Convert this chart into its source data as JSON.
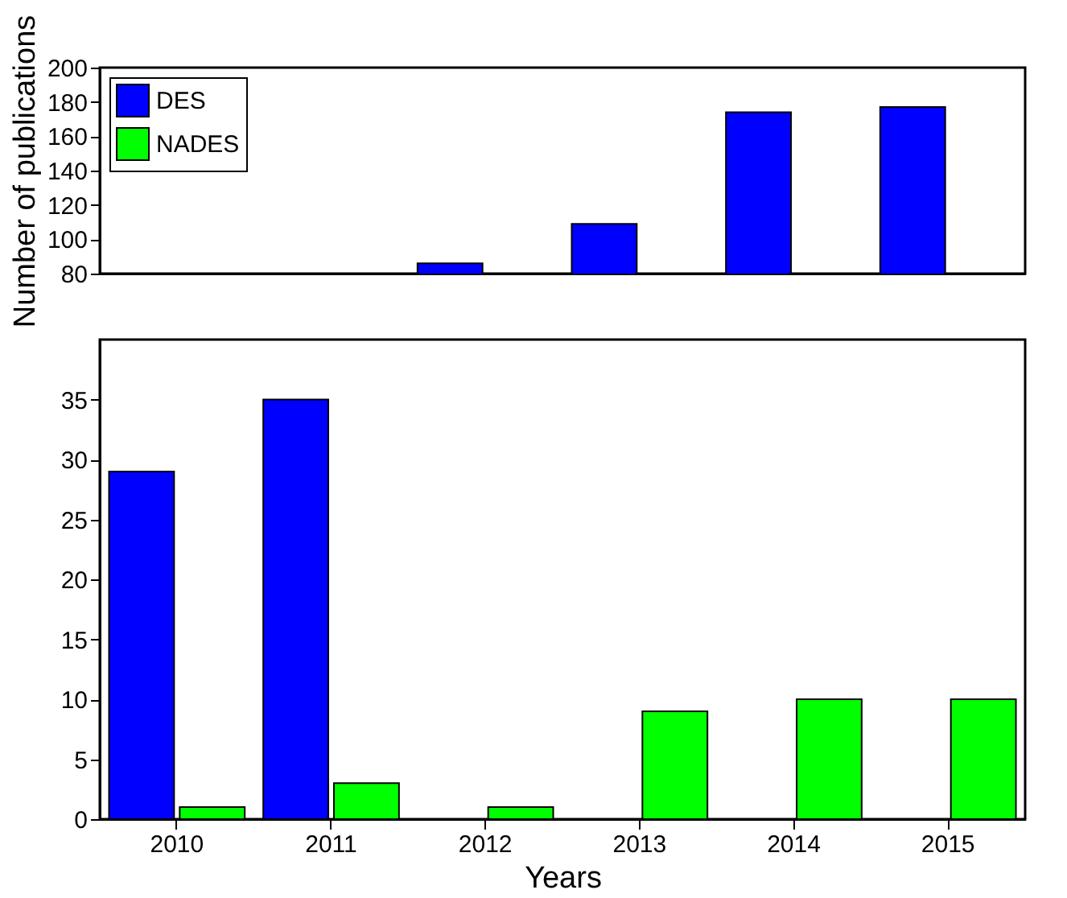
{
  "chart_data": [
    {
      "type": "bar",
      "ylabel": "Number of publications",
      "categories": [
        "2010",
        "2011",
        "2012",
        "2013",
        "2014",
        "2015"
      ],
      "series": [
        {
          "name": "DES",
          "color": "#0000ff",
          "values": [
            null,
            null,
            86,
            109,
            174,
            177
          ]
        },
        {
          "name": "NADES",
          "color": "#00ff00",
          "values": [
            null,
            null,
            null,
            null,
            null,
            null
          ]
        }
      ],
      "ylim": [
        80,
        200
      ],
      "yticks": [
        80,
        100,
        120,
        140,
        160,
        180,
        200
      ],
      "tick_labels": "y",
      "legend": "top left"
    },
    {
      "type": "bar",
      "xlabel": "Years",
      "categories": [
        "2010",
        "2011",
        "2012",
        "2013",
        "2014",
        "2015"
      ],
      "series": [
        {
          "color": "#0000ff",
          "values": [
            29,
            35,
            null,
            null,
            null,
            null
          ]
        },
        {
          "color": "#00ff00",
          "values": [
            1,
            3,
            1,
            9,
            10,
            10
          ]
        }
      ],
      "ylim": [
        0,
        40
      ],
      "yticks": [
        0,
        5,
        10,
        15,
        20,
        25,
        30,
        35
      ],
      "grid": false
    }
  ]
}
